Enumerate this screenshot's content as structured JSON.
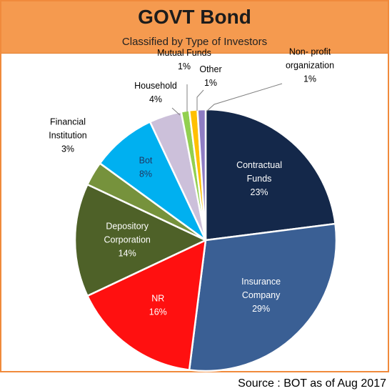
{
  "title": "GOVT Bond",
  "subtitle": "Classified by Type of Investors",
  "source": "Source : BOT as of Aug 2017",
  "chart_data": {
    "type": "pie",
    "title": "GOVT Bond",
    "subtitle": "Classified by Type of Investors",
    "slices": [
      {
        "label": [
          "Contractual",
          "Funds"
        ],
        "value": 23,
        "pct": "23%",
        "color": "#14284a",
        "text_color": "#ffffff",
        "label_pos": "inside"
      },
      {
        "label": [
          "Insurance",
          "Company"
        ],
        "value": 29,
        "pct": "29%",
        "color": "#3a5f94",
        "text_color": "#ffffff",
        "label_pos": "inside"
      },
      {
        "label": [
          "NR"
        ],
        "value": 16,
        "pct": "16%",
        "color": "#ff1010",
        "text_color": "#ffffff",
        "label_pos": "inside"
      },
      {
        "label": [
          "Depository",
          "Corporation"
        ],
        "value": 14,
        "pct": "14%",
        "color": "#4e6128",
        "text_color": "#ffffff",
        "label_pos": "inside"
      },
      {
        "label": [
          "Financial",
          "Institution"
        ],
        "value": 3,
        "pct": "3%",
        "color": "#76923c",
        "text_color": "#000000",
        "label_pos": "outside"
      },
      {
        "label": [
          "Bot"
        ],
        "value": 8,
        "pct": "8%",
        "color": "#00b0f0",
        "text_color": "#1f3864",
        "label_pos": "inside"
      },
      {
        "label": [
          "Household"
        ],
        "value": 4,
        "pct": "4%",
        "color": "#ccc0da",
        "text_color": "#000000",
        "label_pos": "outside"
      },
      {
        "label": [
          "Mutual Funds"
        ],
        "value": 1,
        "pct": "1%",
        "color": "#92d050",
        "text_color": "#000000",
        "label_pos": "outside"
      },
      {
        "label": [
          "Other"
        ],
        "value": 1,
        "pct": "1%",
        "color": "#ffc000",
        "text_color": "#000000",
        "label_pos": "outside"
      },
      {
        "label": [
          "Non- profit",
          "organization"
        ],
        "value": 1,
        "pct": "1%",
        "color": "#8e7cc3",
        "text_color": "#000000",
        "label_pos": "outside"
      }
    ],
    "legend": "none"
  }
}
